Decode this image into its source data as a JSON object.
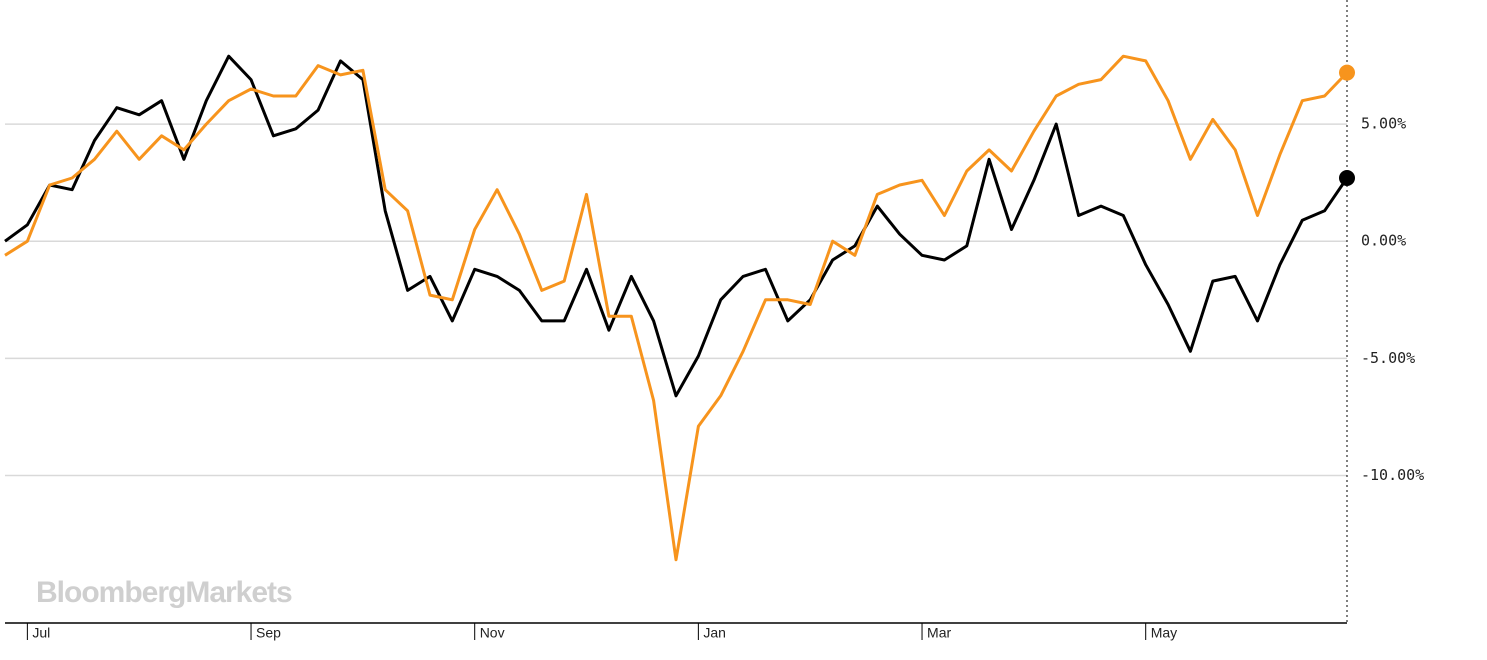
{
  "chart_data": {
    "type": "line",
    "watermark": "BloombergMarkets",
    "categories": [
      null,
      "Jul",
      null,
      null,
      null,
      null,
      null,
      null,
      null,
      null,
      null,
      "Sep",
      null,
      null,
      null,
      null,
      null,
      null,
      null,
      null,
      null,
      "Nov",
      null,
      null,
      null,
      null,
      null,
      null,
      null,
      null,
      null,
      "Jan",
      null,
      null,
      null,
      null,
      null,
      null,
      null,
      null,
      null,
      "Mar",
      null,
      null,
      null,
      null,
      null,
      null,
      null,
      null,
      null,
      "May",
      null,
      null,
      null,
      null,
      null,
      null,
      null,
      null,
      null
    ],
    "series": [
      {
        "color": "#000000",
        "values": [
          0.0,
          0.7,
          2.4,
          2.2,
          4.3,
          5.7,
          5.4,
          6.0,
          3.5,
          6.0,
          7.9,
          6.9,
          4.5,
          4.8,
          5.6,
          7.7,
          6.9,
          1.3,
          -2.1,
          -1.5,
          -3.4,
          -1.2,
          -1.5,
          -2.1,
          -3.4,
          -3.4,
          -1.2,
          -3.8,
          -1.5,
          -3.4,
          -6.6,
          -4.9,
          -2.5,
          -1.5,
          -1.2,
          -3.4,
          -2.5,
          -0.8,
          -0.2,
          1.5,
          0.3,
          -0.6,
          -0.8,
          -0.2,
          3.5,
          0.5,
          2.6,
          5.0,
          1.1,
          1.5,
          1.1,
          -1.0,
          -2.7,
          -4.7,
          -1.7,
          -1.5,
          -3.4,
          -1.0,
          0.9,
          1.3,
          2.7
        ]
      },
      {
        "color": "#f7941d",
        "values": [
          -0.6,
          0.0,
          2.4,
          2.7,
          3.5,
          4.7,
          3.5,
          4.5,
          3.9,
          5.0,
          6.0,
          6.5,
          6.2,
          6.2,
          7.5,
          7.1,
          7.3,
          2.2,
          1.3,
          -2.3,
          -2.5,
          0.5,
          2.2,
          0.3,
          -2.1,
          -1.7,
          2.0,
          -3.2,
          -3.2,
          -6.8,
          -13.6,
          -7.9,
          -6.6,
          -4.7,
          -2.5,
          -2.5,
          -2.7,
          0.0,
          -0.6,
          2.0,
          2.4,
          2.6,
          1.1,
          3.0,
          3.9,
          3.0,
          4.7,
          6.2,
          6.7,
          6.9,
          7.9,
          7.7,
          6.0,
          3.5,
          5.2,
          3.9,
          1.1,
          3.7,
          6.0,
          6.2,
          7.2
        ]
      }
    ],
    "ylim": [
      -16.3,
      10.3
    ],
    "yticks": [
      {
        "value": 5,
        "label": "5.00%"
      },
      {
        "value": 0,
        "label": "0.00%"
      },
      {
        "value": -5,
        "label": "-5.00%"
      },
      {
        "value": -10,
        "label": "-10.00%"
      }
    ],
    "grid": true
  }
}
